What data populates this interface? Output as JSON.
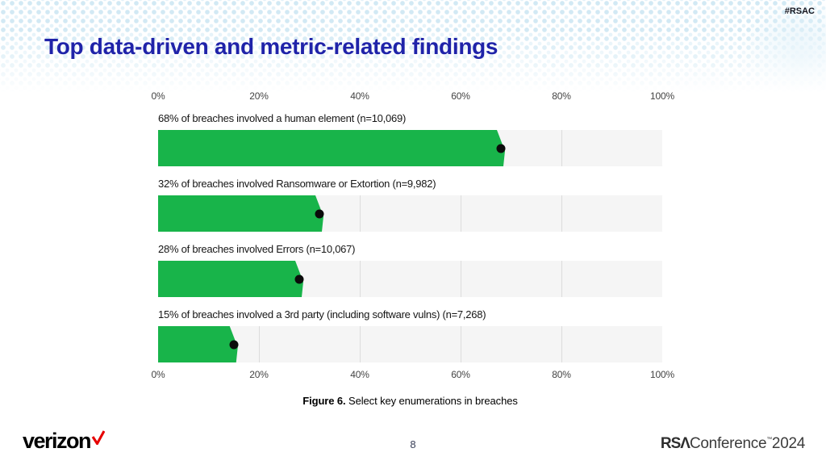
{
  "slide": {
    "title": "Top data-driven and metric-related findings",
    "hashtag": "#RSAC",
    "page_number": "8",
    "caption": {
      "bold": "Figure 6.",
      "text": " Select key enumerations in breaches"
    },
    "footer": {
      "verizon_wordmark": "verizon",
      "rsa_bold": "RSΛ",
      "rsa_light": "Conference",
      "rsa_tm": "™",
      "rsa_year": "2024"
    }
  },
  "colors": {
    "bar_green": "#18b44a",
    "title_blue": "#2023a9",
    "verizon_red": "#e60000",
    "track_gray": "#f5f5f5",
    "gridline_gray": "#dcdcdc",
    "marker_black": "#0b0b0b"
  },
  "chart_data": {
    "type": "bar",
    "orientation": "horizontal",
    "title": "Figure 6. Select key enumerations in breaches",
    "xlabel": "",
    "ylabel": "",
    "xlim": [
      0,
      100
    ],
    "x_ticks": [
      "0%",
      "20%",
      "40%",
      "60%",
      "80%",
      "100%"
    ],
    "grid": true,
    "legend": false,
    "marker": "black-dot-at-value",
    "bar_color": "#18b44a",
    "bars": [
      {
        "label": "68% of breaches involved a human element (n=10,069)",
        "value": 68,
        "n": 10069
      },
      {
        "label": "32% of breaches involved Ransomware or Extortion (n=9,982)",
        "value": 32,
        "n": 9982
      },
      {
        "label": "28% of breaches involved Errors (n=10,067)",
        "value": 28,
        "n": 10067
      },
      {
        "label": "15% of breaches involved a 3rd party (including software vulns) (n=7,268)",
        "value": 15,
        "n": 7268
      }
    ]
  }
}
